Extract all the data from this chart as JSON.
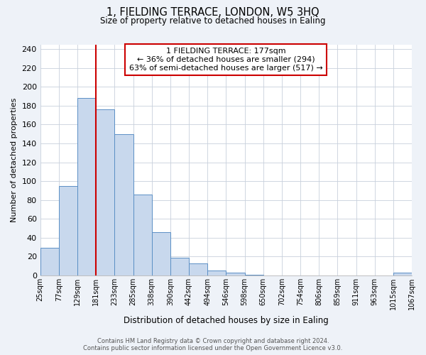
{
  "title": "1, FIELDING TERRACE, LONDON, W5 3HQ",
  "subtitle": "Size of property relative to detached houses in Ealing",
  "xlabel": "Distribution of detached houses by size in Ealing",
  "ylabel": "Number of detached properties",
  "bar_values": [
    29,
    95,
    188,
    176,
    150,
    86,
    46,
    19,
    13,
    5,
    3,
    1,
    0,
    0,
    0,
    0,
    0,
    0,
    0,
    3
  ],
  "bin_labels": [
    "25sqm",
    "77sqm",
    "129sqm",
    "181sqm",
    "233sqm",
    "285sqm",
    "338sqm",
    "390sqm",
    "442sqm",
    "494sqm",
    "546sqm",
    "598sqm",
    "650sqm",
    "702sqm",
    "754sqm",
    "806sqm",
    "859sqm",
    "911sqm",
    "963sqm",
    "1015sqm",
    "1067sqm"
  ],
  "bar_color": "#c8d8ed",
  "bar_edge_color": "#5b8fc5",
  "vline_x_index": 3,
  "vline_color": "#cc0000",
  "annotation_text_line1": "1 FIELDING TERRACE: 177sqm",
  "annotation_text_line2": "← 36% of detached houses are smaller (294)",
  "annotation_text_line3": "63% of semi-detached houses are larger (517) →",
  "ylim": [
    0,
    245
  ],
  "yticks": [
    0,
    20,
    40,
    60,
    80,
    100,
    120,
    140,
    160,
    180,
    200,
    220,
    240
  ],
  "footer_line1": "Contains HM Land Registry data © Crown copyright and database right 2024.",
  "footer_line2": "Contains public sector information licensed under the Open Government Licence v3.0.",
  "background_color": "#eef2f8",
  "plot_bg_color": "#ffffff",
  "grid_color": "#c8d0dc"
}
